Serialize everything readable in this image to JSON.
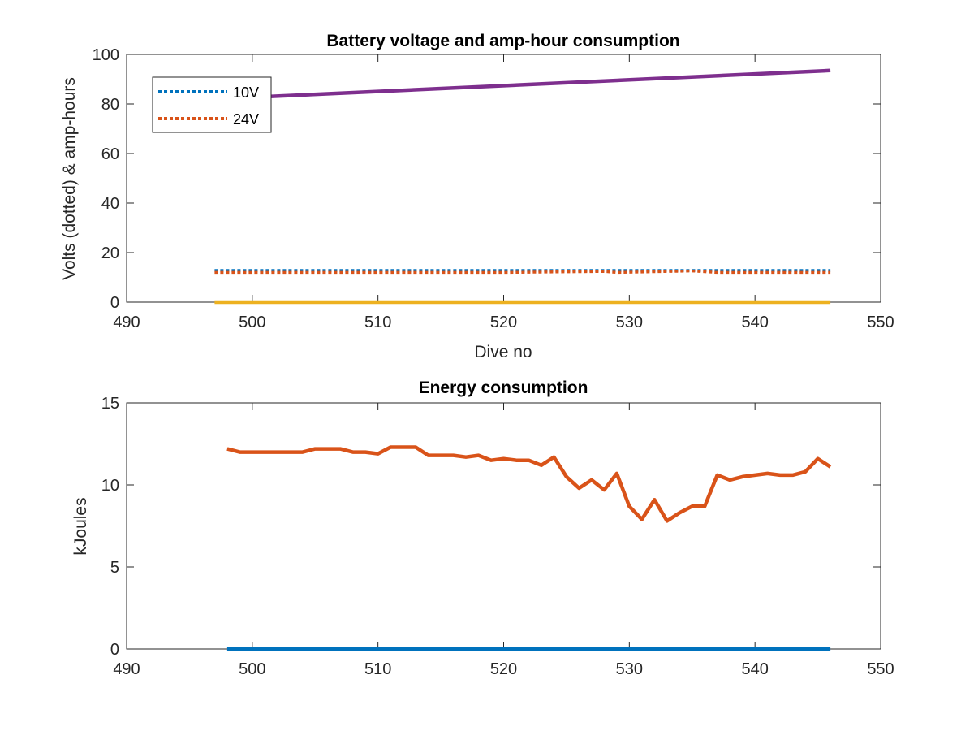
{
  "chart_data": [
    {
      "type": "line",
      "title": "Battery voltage and amp-hour consumption",
      "xlabel": "Dive no",
      "ylabel": "Volts (dotted) & amp-hours",
      "xlim": [
        490,
        550
      ],
      "ylim": [
        0,
        100
      ],
      "xticks": [
        490,
        500,
        510,
        520,
        530,
        540,
        550
      ],
      "yticks": [
        0,
        20,
        40,
        60,
        80,
        100
      ],
      "legend": {
        "placement": "top-left",
        "entries": [
          {
            "label": "10V",
            "color": "#0072BD",
            "style": "dotted"
          },
          {
            "label": "24V",
            "color": "#D95319",
            "style": "dotted"
          }
        ]
      },
      "series": [
        {
          "name": "10V",
          "color": "#0072BD",
          "style": "dotted",
          "x": [
            497,
            510,
            520,
            528,
            535,
            546
          ],
          "y": [
            12.8,
            12.8,
            12.8,
            12.8,
            12.8,
            12.8
          ]
        },
        {
          "name": "24V",
          "color": "#D95319",
          "style": "dotted",
          "x": [
            497,
            510,
            520,
            528,
            529,
            535,
            537,
            546
          ],
          "y": [
            12.0,
            12.0,
            12.0,
            12.4,
            12.0,
            12.6,
            12.0,
            12.0
          ]
        },
        {
          "color": "#7E2F8E",
          "style": "solid",
          "x": [
            497,
            546
          ],
          "y": [
            82,
            93.5
          ]
        },
        {
          "color": "#EDB120",
          "style": "solid",
          "x": [
            497,
            546
          ],
          "y": [
            0,
            0
          ]
        }
      ]
    },
    {
      "type": "line",
      "title": "Energy consumption",
      "xlabel": "",
      "ylabel": "kJoules",
      "xlim": [
        490,
        550
      ],
      "ylim": [
        0,
        15
      ],
      "xticks": [
        490,
        500,
        510,
        520,
        530,
        540,
        550
      ],
      "yticks": [
        0,
        5,
        10,
        15
      ],
      "series": [
        {
          "color": "#D95319",
          "style": "solid",
          "x": [
            498,
            499,
            500,
            501,
            502,
            503,
            504,
            505,
            506,
            507,
            508,
            509,
            510,
            511,
            512,
            513,
            514,
            515,
            516,
            517,
            518,
            519,
            520,
            521,
            522,
            523,
            524,
            525,
            526,
            527,
            528,
            529,
            530,
            531,
            532,
            533,
            534,
            535,
            536,
            537,
            538,
            539,
            540,
            541,
            542,
            543,
            544,
            545,
            546
          ],
          "y": [
            12.2,
            12.0,
            12.0,
            12.0,
            12.0,
            12.0,
            12.0,
            12.2,
            12.2,
            12.2,
            12.0,
            12.0,
            11.9,
            12.3,
            12.3,
            12.3,
            11.8,
            11.8,
            11.8,
            11.7,
            11.8,
            11.5,
            11.6,
            11.5,
            11.5,
            11.2,
            11.7,
            10.5,
            9.8,
            10.3,
            9.7,
            10.7,
            8.7,
            7.9,
            9.1,
            7.8,
            8.3,
            8.7,
            8.7,
            10.6,
            10.3,
            10.5,
            10.6,
            10.7,
            10.6,
            10.6,
            10.8,
            11.6,
            11.1
          ]
        },
        {
          "color": "#0072BD",
          "style": "solid",
          "x": [
            498,
            546
          ],
          "y": [
            0,
            0
          ]
        }
      ]
    }
  ]
}
